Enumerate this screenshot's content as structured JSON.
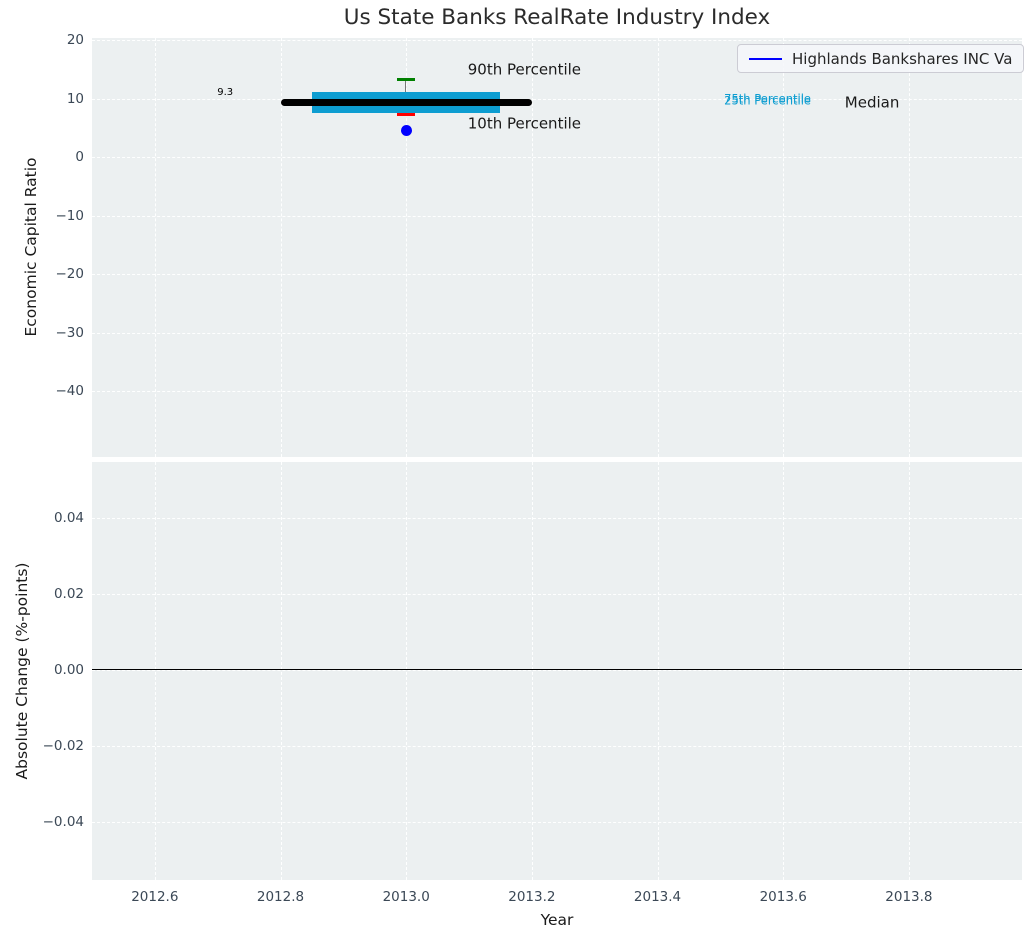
{
  "title": "Us State Banks RealRate Industry Index",
  "legend": {
    "label": "Highlands Bankshares INC Va",
    "line_color": "#0000ff"
  },
  "colors": {
    "plot_background": "#ecf0f1",
    "gridline": "#ffffff",
    "tick_label": "#3b4856",
    "axis_label": "#1a1a1a",
    "band_cyan": "#0d9dd1",
    "median_black": "#000000",
    "p90_green": "#008000",
    "p10_red": "#ff0000",
    "whisker_gray": "#777777",
    "company_dot_blue": "#0000ff",
    "zero_line": "#000000"
  },
  "chart_data": [
    {
      "type": "box",
      "title": "Us State Banks RealRate Industry Index",
      "ylabel": "Economic Capital Ratio",
      "ylim": [
        -51.2,
        20.34
      ],
      "yticks": [
        {
          "v": 20,
          "label": "20"
        },
        {
          "v": 10,
          "label": "10"
        },
        {
          "v": 0,
          "label": "0"
        },
        {
          "v": -10,
          "label": "−10"
        },
        {
          "v": -20,
          "label": "−20"
        },
        {
          "v": -30,
          "label": "−30"
        },
        {
          "v": -40,
          "label": "−40"
        }
      ],
      "grid": true,
      "legend_position": "upper right",
      "x_center": 2013.0,
      "box": {
        "p10": 7.2,
        "p25": 7.6,
        "median": 9.3,
        "p75": 11.1,
        "p90": 13.3,
        "company_value": 4.5,
        "median_line_xspan": [
          2012.8,
          2013.2
        ],
        "band_xspan": [
          2012.85,
          2013.15
        ],
        "cap_halfwidth": 0.0145
      },
      "annotations": [
        {
          "text": "9.3",
          "x": 2012.712,
          "y": 10.9,
          "size": 10,
          "color": "#000000",
          "anchor": "middle"
        },
        {
          "text": "90th Percentile",
          "x": 2013.098,
          "y": 14.9,
          "size": 15,
          "color": "#1a1a1a",
          "anchor": "start"
        },
        {
          "text": "10th Percentile",
          "x": 2013.098,
          "y": 5.6,
          "size": 15,
          "color": "#1a1a1a",
          "anchor": "start"
        },
        {
          "text": "75th Percentile",
          "x": 2013.506,
          "y": 10.0,
          "size": 11.5,
          "color": "#0d9dd1",
          "anchor": "start"
        },
        {
          "text": "25th Percentile",
          "x": 2013.506,
          "y": 9.5,
          "size": 11.5,
          "color": "#0d9dd1",
          "anchor": "start"
        },
        {
          "text": "Median",
          "x": 2013.698,
          "y": 9.3,
          "size": 15,
          "color": "#1a1a1a",
          "anchor": "start"
        }
      ]
    },
    {
      "type": "line",
      "ylabel": "Absolute Change (%-points)",
      "xlabel": "Year",
      "xlim": [
        2012.5,
        2013.98
      ],
      "ylim": [
        -0.0553,
        0.0547
      ],
      "yticks": [
        {
          "v": 0.04,
          "label": "0.04"
        },
        {
          "v": 0.02,
          "label": "0.02"
        },
        {
          "v": 0.0,
          "label": "0.00"
        },
        {
          "v": -0.02,
          "label": "−0.02"
        },
        {
          "v": -0.04,
          "label": "−0.04"
        }
      ],
      "xticks": [
        {
          "v": 2012.6,
          "label": "2012.6"
        },
        {
          "v": 2012.8,
          "label": "2012.8"
        },
        {
          "v": 2013.0,
          "label": "2013.0"
        },
        {
          "v": 2013.2,
          "label": "2013.2"
        },
        {
          "v": 2013.4,
          "label": "2013.4"
        },
        {
          "v": 2013.6,
          "label": "2013.6"
        },
        {
          "v": 2013.8,
          "label": "2013.8"
        }
      ],
      "zero_line": 0.0,
      "grid": true,
      "series": []
    }
  ]
}
